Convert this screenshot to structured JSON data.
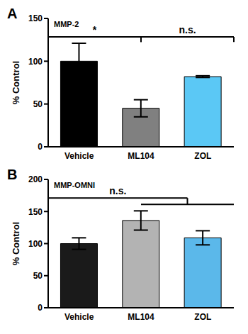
{
  "chart_data": [
    {
      "type": "bar",
      "panel_label": "A",
      "title": "MMP-2",
      "y_label": "% Control",
      "categories": [
        "Vehicle",
        "ML104",
        "ZOL"
      ],
      "values": [
        100,
        45,
        82
      ],
      "errors": [
        21,
        10,
        1
      ],
      "colors": [
        "#000000",
        "#808080",
        "#5bc8f5"
      ],
      "ylim": [
        0,
        150
      ],
      "yticks": [
        0,
        50,
        100,
        150
      ],
      "annotations": [
        {
          "text": "*",
          "between": [
            [
              "Vehicle"
            ],
            [
              "ML104"
            ]
          ]
        },
        {
          "text": "n.s.",
          "between": [
            [
              "ML104"
            ],
            [
              "ZOL"
            ]
          ]
        }
      ]
    },
    {
      "type": "bar",
      "panel_label": "B",
      "title": "MMP-OMNI",
      "y_label": "% Control",
      "categories": [
        "Vehicle",
        "ML104",
        "ZOL"
      ],
      "values": [
        100,
        136,
        109
      ],
      "errors": [
        9,
        15,
        11
      ],
      "colors": [
        "#1a1a1a",
        "#b3b3b3",
        "#5bb8ea"
      ],
      "ylim": [
        0,
        200
      ],
      "yticks": [
        0,
        50,
        100,
        150,
        200
      ],
      "annotations": [
        {
          "text": "n.s.",
          "between": [
            [
              "Vehicle"
            ],
            [
              "ML104",
              "ZOL"
            ]
          ]
        }
      ]
    }
  ]
}
